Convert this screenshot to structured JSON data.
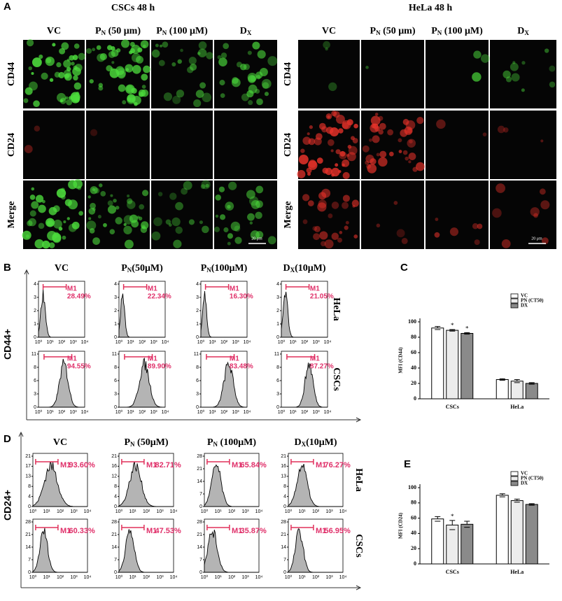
{
  "panel_a": {
    "label": "A",
    "groups": [
      {
        "title": "CSCs  48 h",
        "columns": [
          {
            "text": "VC"
          },
          {
            "text": "P",
            "sub": "N",
            "rest": " (50 μm)"
          },
          {
            "text": "P",
            "sub": "N",
            "rest": " (100 μM)"
          },
          {
            "text": "D",
            "sub": "X"
          }
        ]
      },
      {
        "title": "HeLa 48 h",
        "columns": [
          {
            "text": "VC"
          },
          {
            "text": "P",
            "sub": "N",
            "rest": " (50 μm)"
          },
          {
            "text": "P",
            "sub": "N",
            "rest": " (100 μM)"
          },
          {
            "text": "D",
            "sub": "X"
          }
        ]
      }
    ],
    "rows": [
      "CD44",
      "CD24",
      "Merge"
    ],
    "scale_bar": "20 μm"
  },
  "panel_b": {
    "label": "B",
    "axis_label": "CD44+",
    "columns": [
      {
        "text": "VC"
      },
      {
        "text": "P",
        "sub": "N",
        "rest": "(50μM)"
      },
      {
        "text": "P",
        "sub": "N",
        "rest": "(100μM)"
      },
      {
        "text": "D",
        "sub": "X",
        "rest": "(10μM)"
      }
    ],
    "x_ticks": [
      "10⁰",
      "10¹",
      "10²",
      "10³",
      "10⁴"
    ],
    "rows": [
      {
        "name": "HeLa",
        "plots": [
          {
            "gate": "M1",
            "percent": "28.49%",
            "y_ticks": [
              0,
              1,
              2,
              3,
              4
            ]
          },
          {
            "gate": "M1",
            "percent": "22.34%",
            "y_ticks": [
              0,
              1,
              2,
              3,
              4
            ]
          },
          {
            "gate": "M1",
            "percent": "16.30%",
            "y_ticks": [
              0,
              1,
              2,
              3,
              4
            ]
          },
          {
            "gate": "M1",
            "percent": "21.05%",
            "y_ticks": [
              0,
              1,
              2,
              3,
              4
            ]
          }
        ]
      },
      {
        "name": "CSCs",
        "plots": [
          {
            "gate": "M1",
            "percent": "94.55%",
            "y_ticks": [
              0,
              3,
              6,
              8,
              11
            ]
          },
          {
            "gate": "M1",
            "percent": "89.90%",
            "y_ticks": [
              0,
              3,
              6,
              8,
              11
            ]
          },
          {
            "gate": "M1",
            "percent": "83.48%",
            "y_ticks": [
              0,
              3,
              6,
              8,
              11
            ]
          },
          {
            "gate": "M1",
            "percent": "87.27%",
            "y_ticks": [
              0,
              3,
              6,
              8,
              11
            ]
          }
        ]
      }
    ]
  },
  "panel_d": {
    "label": "D",
    "axis_label": "CD24+",
    "columns": [
      {
        "text": "VC"
      },
      {
        "text": "P",
        "sub": "N",
        "rest": " (50μM)"
      },
      {
        "text": "P",
        "sub": "N",
        "rest": " (100μM)"
      },
      {
        "text": "D",
        "sub": "X",
        "rest": "(10μM)"
      }
    ],
    "x_ticks": [
      "10⁰",
      "10¹",
      "10²",
      "10³",
      "10⁴"
    ],
    "rows": [
      {
        "name": "HeLa",
        "plots": [
          {
            "gate": "M1",
            "percent": "93.60%",
            "y_ticks": [
              0,
              4,
              8,
              13,
              17,
              21
            ]
          },
          {
            "gate": "M1",
            "percent": "82.71%",
            "y_ticks": [
              0,
              4,
              8,
              12,
              16,
              21
            ]
          },
          {
            "gate": "M1",
            "percent": "65.84%",
            "y_ticks": [
              0,
              7,
              14,
              21,
              28
            ]
          },
          {
            "gate": "M1",
            "percent": "76.27%",
            "y_ticks": [
              0,
              4,
              8,
              13,
              16,
              21
            ]
          }
        ]
      },
      {
        "name": "CSCs",
        "plots": [
          {
            "gate": "M1",
            "percent": "60.33%",
            "y_ticks": [
              0,
              7,
              14,
              21,
              28
            ]
          },
          {
            "gate": "M1",
            "percent": "47.53%",
            "y_ticks": [
              0,
              7,
              14,
              21,
              28
            ]
          },
          {
            "gate": "M1",
            "percent": "35.87%",
            "y_ticks": [
              0,
              7,
              14,
              21,
              28
            ]
          },
          {
            "gate": "M1",
            "percent": "56.95%",
            "y_ticks": [
              0,
              7,
              14,
              21,
              28
            ]
          }
        ]
      }
    ]
  },
  "chart_data": [
    {
      "type": "bar",
      "label": "C",
      "y_label": "MFI (CD44)",
      "categories": [
        "CSCs",
        "HeLa"
      ],
      "series": [
        {
          "name": "VC",
          "color": "#ffffff",
          "values": [
            92,
            25
          ],
          "errors": [
            2,
            1
          ]
        },
        {
          "name": "PN (CT50)",
          "color": "#ececec",
          "values": [
            89,
            23
          ],
          "errors": [
            1,
            2
          ]
        },
        {
          "name": "DX",
          "color": "#8a8a8a",
          "values": [
            85,
            20
          ],
          "errors": [
            1,
            1
          ]
        }
      ],
      "ylim": [
        0,
        100
      ],
      "yticks": [
        0,
        20,
        40,
        60,
        80,
        100
      ],
      "annotations": [
        {
          "text": "*",
          "series": 1,
          "category": 0
        },
        {
          "text": "*",
          "series": 2,
          "category": 0
        }
      ]
    },
    {
      "type": "bar",
      "label": "E",
      "y_label": "MFI (CD24)",
      "categories": [
        "CSCs",
        "HeLa"
      ],
      "series": [
        {
          "name": "VC",
          "color": "#ffffff",
          "values": [
            59,
            90
          ],
          "errors": [
            3,
            2
          ]
        },
        {
          "name": "PN (CT50)",
          "color": "#ececec",
          "values": [
            51,
            83
          ],
          "errors": [
            6,
            2
          ]
        },
        {
          "name": "DX",
          "color": "#8a8a8a",
          "values": [
            52,
            78
          ],
          "errors": [
            4,
            1
          ]
        }
      ],
      "ylim": [
        0,
        100
      ],
      "yticks": [
        0,
        20,
        40,
        60,
        80,
        100
      ],
      "annotations": [
        {
          "text": "*",
          "series": 1,
          "category": 0
        }
      ]
    }
  ]
}
